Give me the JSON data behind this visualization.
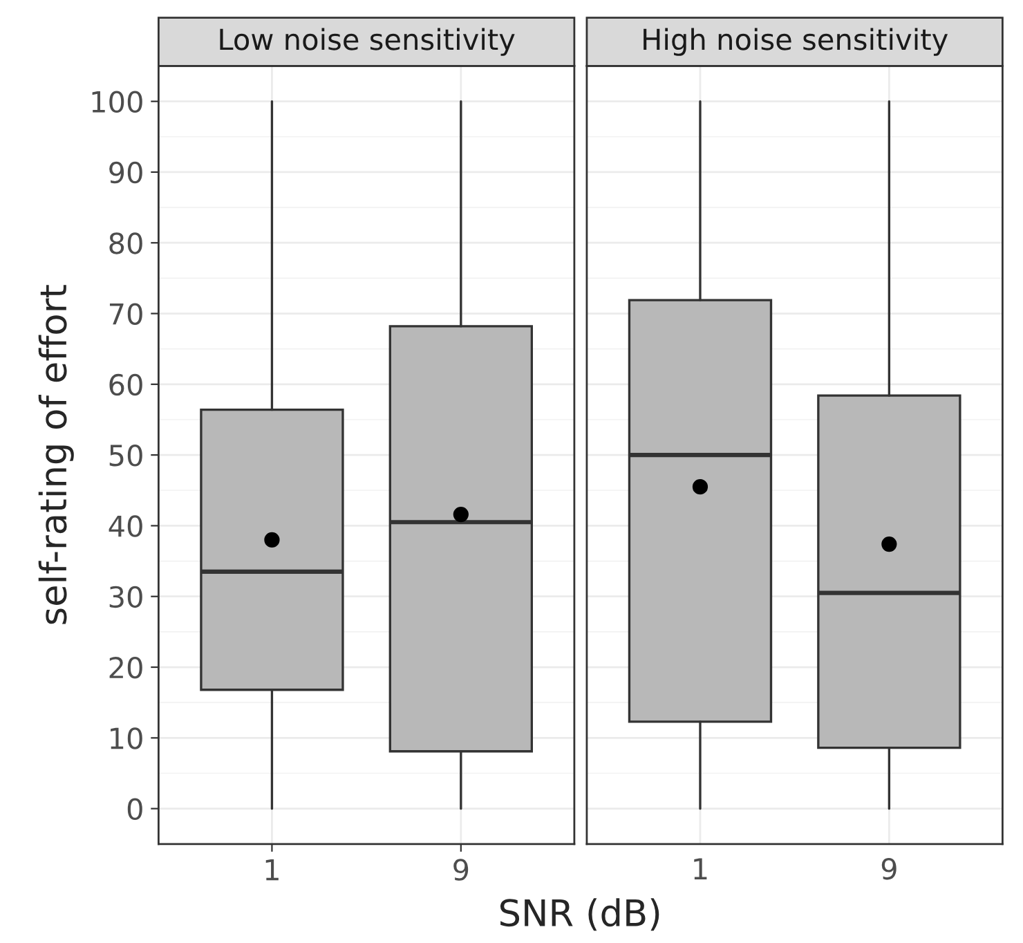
{
  "chart_data": [
    {
      "type": "box",
      "title": "Low noise sensitivity",
      "ylabel": "self-rating of effort",
      "xlabel": "SNR (dB)",
      "categories": [
        "1",
        "9"
      ],
      "color": "#b8b8b8",
      "ylim": [
        -5,
        105
      ],
      "yticks": [
        0,
        10,
        20,
        30,
        40,
        50,
        60,
        70,
        80,
        90,
        100
      ],
      "grid": true,
      "boxes": [
        {
          "low": 0,
          "q1": 16.8,
          "median": 33.5,
          "q3": 56.4,
          "high": 100,
          "mean": 38.0
        },
        {
          "low": 0,
          "q1": 8.1,
          "median": 40.5,
          "q3": 68.2,
          "high": 100,
          "mean": 41.6
        }
      ]
    },
    {
      "type": "box",
      "title": "High noise sensitivity",
      "categories": [
        "1",
        "9"
      ],
      "color": "#b8b8b8",
      "ylim": [
        -5,
        105
      ],
      "yticks": [
        0,
        10,
        20,
        30,
        40,
        50,
        60,
        70,
        80,
        90,
        100
      ],
      "grid": true,
      "tick_labels": "x",
      "boxes": [
        {
          "low": 0,
          "q1": 12.3,
          "median": 50.0,
          "q3": 71.9,
          "high": 100,
          "mean": 45.5
        },
        {
          "low": 0,
          "q1": 8.6,
          "median": 30.5,
          "q3": 58.4,
          "high": 100,
          "mean": 37.4
        }
      ]
    }
  ]
}
